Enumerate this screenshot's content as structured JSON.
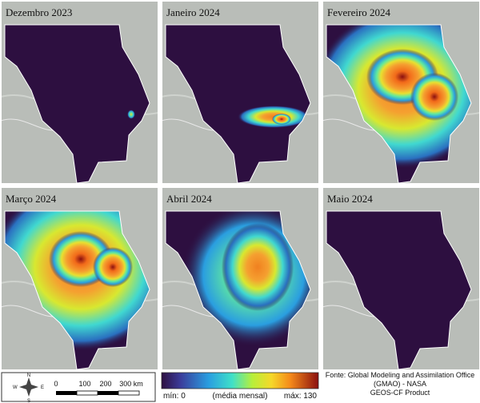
{
  "panels": [
    {
      "title": "Dezembro 2023"
    },
    {
      "title": "Janeiro 2024"
    },
    {
      "title": "Fevereiro 2024"
    },
    {
      "title": "Março 2024"
    },
    {
      "title": "Abril 2024"
    },
    {
      "title": "Maio 2024"
    }
  ],
  "scale_bar": {
    "labels": [
      "0",
      "100",
      "200",
      "300 km"
    ],
    "compass": [
      "N",
      "S",
      "E",
      "W"
    ]
  },
  "colorbar": {
    "min_label": "mín: 0",
    "mid_label": "(média mensal)",
    "max_label": "máx: 130"
  },
  "source": [
    "Fonte: Global Modeling and Assimilation Office",
    "(GMAO) - NASA",
    "GEOS-CF Product"
  ]
}
